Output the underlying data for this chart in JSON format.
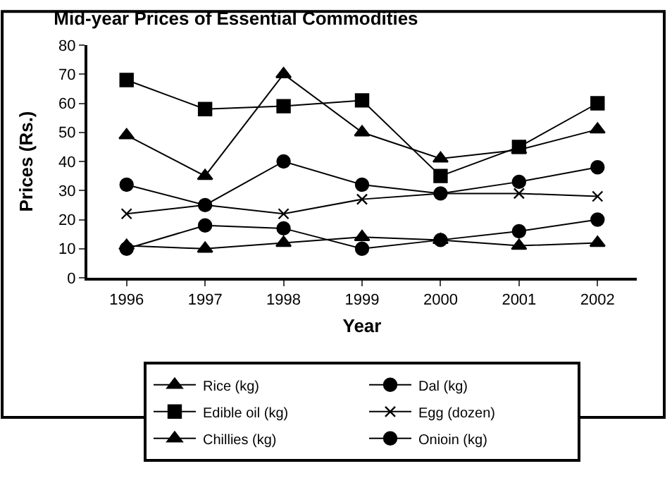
{
  "chart_data": {
    "type": "line",
    "title": "Mid-year Prices of Essential Commodities",
    "xlabel": "Year",
    "ylabel": "Prices (Rs.)",
    "categories": [
      "1996",
      "1997",
      "1998",
      "1999",
      "2000",
      "2001",
      "2002"
    ],
    "series": [
      {
        "name": "Rice (kg)",
        "color": "#000000",
        "marker": "triangle",
        "values": [
          11,
          10,
          12,
          14,
          13,
          11,
          12
        ]
      },
      {
        "name": "Dal (kg)",
        "color": "#000000",
        "marker": "circle",
        "values": [
          32,
          25,
          40,
          32,
          29,
          33,
          38
        ]
      },
      {
        "name": "Edible oil (kg)",
        "color": "#000000",
        "marker": "square",
        "values": [
          68,
          58,
          59,
          61,
          35,
          45,
          60
        ]
      },
      {
        "name": "Egg (dozen)",
        "color": "#000000",
        "marker": "cross",
        "values": [
          22,
          25,
          22,
          27,
          29,
          29,
          28
        ]
      },
      {
        "name": "Chillies (kg)",
        "color": "#000000",
        "marker": "triangle",
        "values": [
          49,
          35,
          70,
          50,
          41,
          44,
          51
        ]
      },
      {
        "name": "Onioin (kg)",
        "color": "#000000",
        "marker": "circle",
        "values": [
          10,
          18,
          17,
          10,
          13,
          16,
          20
        ]
      }
    ],
    "ylim": [
      0,
      80
    ],
    "yticks": [
      0,
      10,
      20,
      30,
      40,
      50,
      60,
      70,
      80
    ],
    "legend": "bottom",
    "line_style": "solid"
  }
}
